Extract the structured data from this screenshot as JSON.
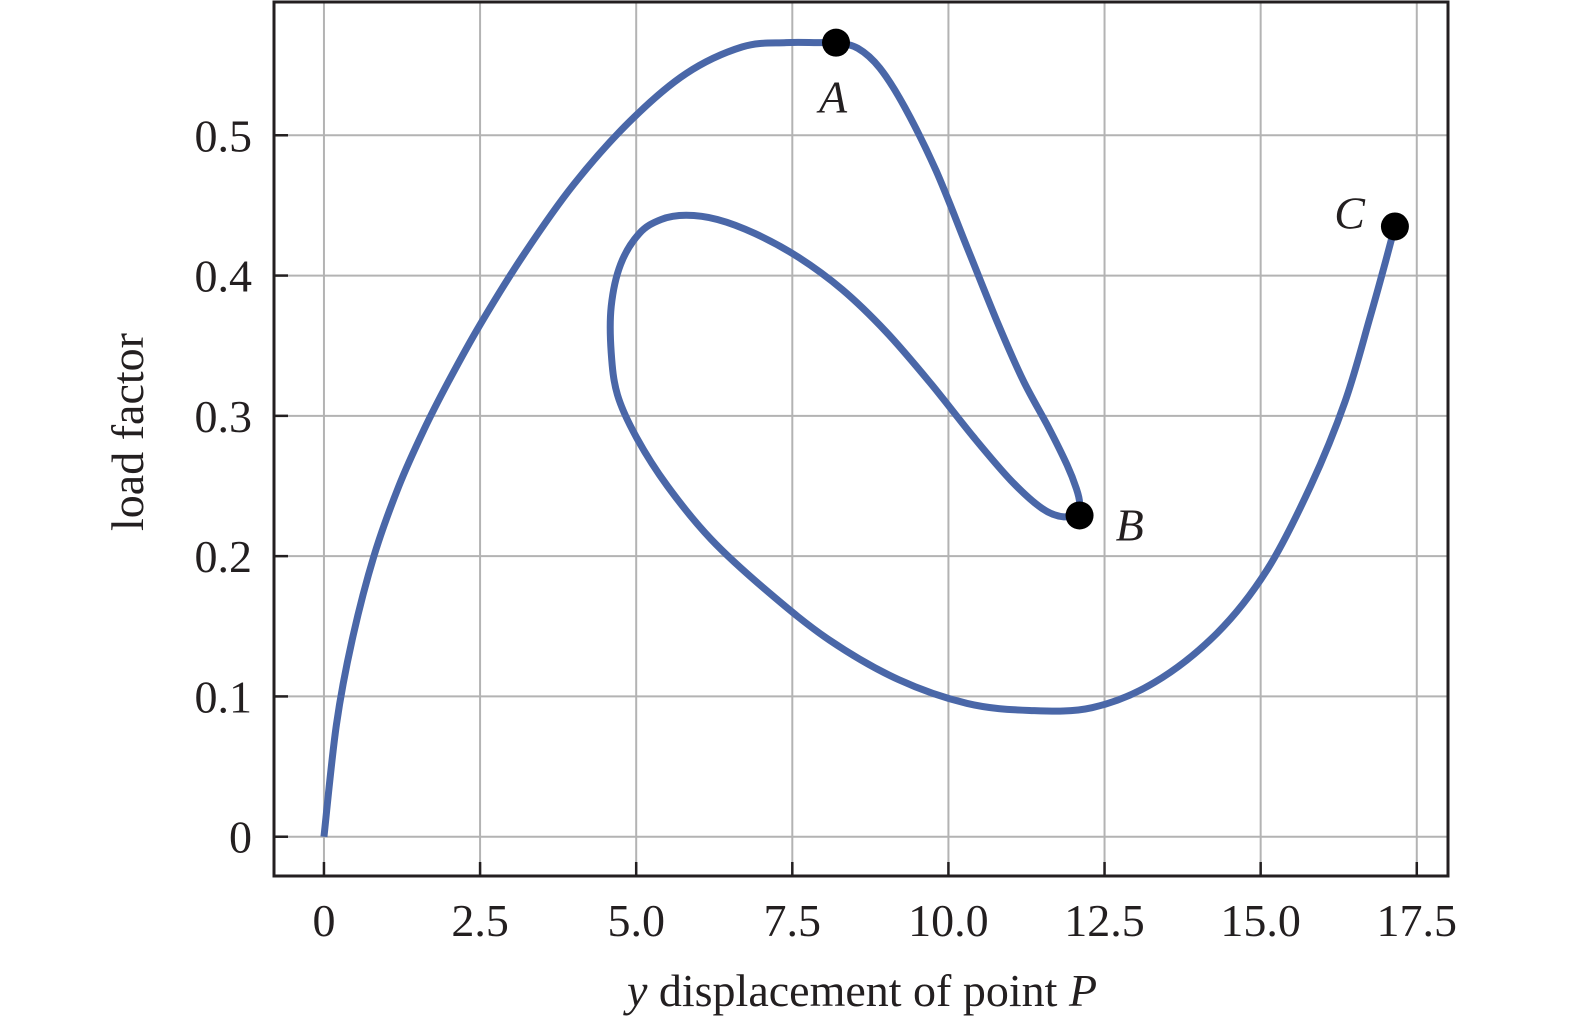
{
  "chart_data": {
    "type": "line",
    "title": "",
    "xlabel_prefix": "y",
    "xlabel_middle": " displacement of point ",
    "xlabel_suffix": "P",
    "ylabel": "load factor",
    "xlim": [
      -0.8,
      18.0
    ],
    "ylim": [
      -0.028,
      0.595
    ],
    "grid": true,
    "x_ticks": [
      0,
      2.5,
      5.0,
      7.5,
      10.0,
      12.5,
      15.0,
      17.5
    ],
    "x_tick_labels": [
      "0",
      "2.5",
      "5.0",
      "7.5",
      "10.0",
      "12.5",
      "15.0",
      "17.5"
    ],
    "y_ticks": [
      0,
      0.1,
      0.2,
      0.3,
      0.4,
      0.5
    ],
    "y_tick_labels": [
      "0",
      "0.1",
      "0.2",
      "0.3",
      "0.4",
      "0.5"
    ],
    "colors": {
      "series": "#4a67a8",
      "grid": "#b3b3b3",
      "axis": "#231f20",
      "marker": "#000000"
    },
    "series": [
      {
        "x": [
          0,
          0.2,
          0.45,
          0.8,
          1.2,
          1.6,
          2.0,
          2.5,
          3.2,
          4.0,
          4.9,
          5.8,
          6.7,
          7.4,
          7.9,
          8.2,
          8.55,
          8.9,
          9.3,
          9.8,
          10.3,
          10.8,
          11.2,
          11.6,
          11.9,
          12.05,
          12.1,
          12.05,
          11.85,
          11.5,
          11.0,
          10.4,
          9.7,
          9.0,
          8.3,
          7.6,
          6.9,
          6.3,
          5.8,
          5.4,
          5.05,
          4.75,
          4.6,
          4.6,
          4.7,
          5.0,
          5.5,
          6.2,
          7.1,
          8.1,
          9.2,
          10.3,
          11.3,
          12.3,
          13.3,
          14.3,
          15.1,
          15.8,
          16.35,
          16.75,
          17.0,
          17.15
        ],
        "y": [
          0,
          0.08,
          0.14,
          0.2,
          0.25,
          0.29,
          0.325,
          0.365,
          0.415,
          0.465,
          0.51,
          0.544,
          0.563,
          0.566,
          0.566,
          0.566,
          0.562,
          0.548,
          0.52,
          0.475,
          0.42,
          0.365,
          0.325,
          0.292,
          0.265,
          0.248,
          0.238,
          0.232,
          0.228,
          0.234,
          0.254,
          0.285,
          0.324,
          0.36,
          0.39,
          0.413,
          0.43,
          0.44,
          0.443,
          0.44,
          0.43,
          0.408,
          0.378,
          0.345,
          0.315,
          0.285,
          0.25,
          0.212,
          0.175,
          0.14,
          0.112,
          0.095,
          0.09,
          0.092,
          0.11,
          0.145,
          0.19,
          0.25,
          0.31,
          0.37,
          0.41,
          0.435
        ]
      }
    ],
    "points": [
      {
        "label": "A",
        "x": 8.2,
        "y": 0.566,
        "label_pos": "below"
      },
      {
        "label": "B",
        "x": 12.1,
        "y": 0.229,
        "label_pos": "right"
      },
      {
        "label": "C",
        "x": 17.15,
        "y": 0.435,
        "label_pos": "left"
      }
    ]
  }
}
